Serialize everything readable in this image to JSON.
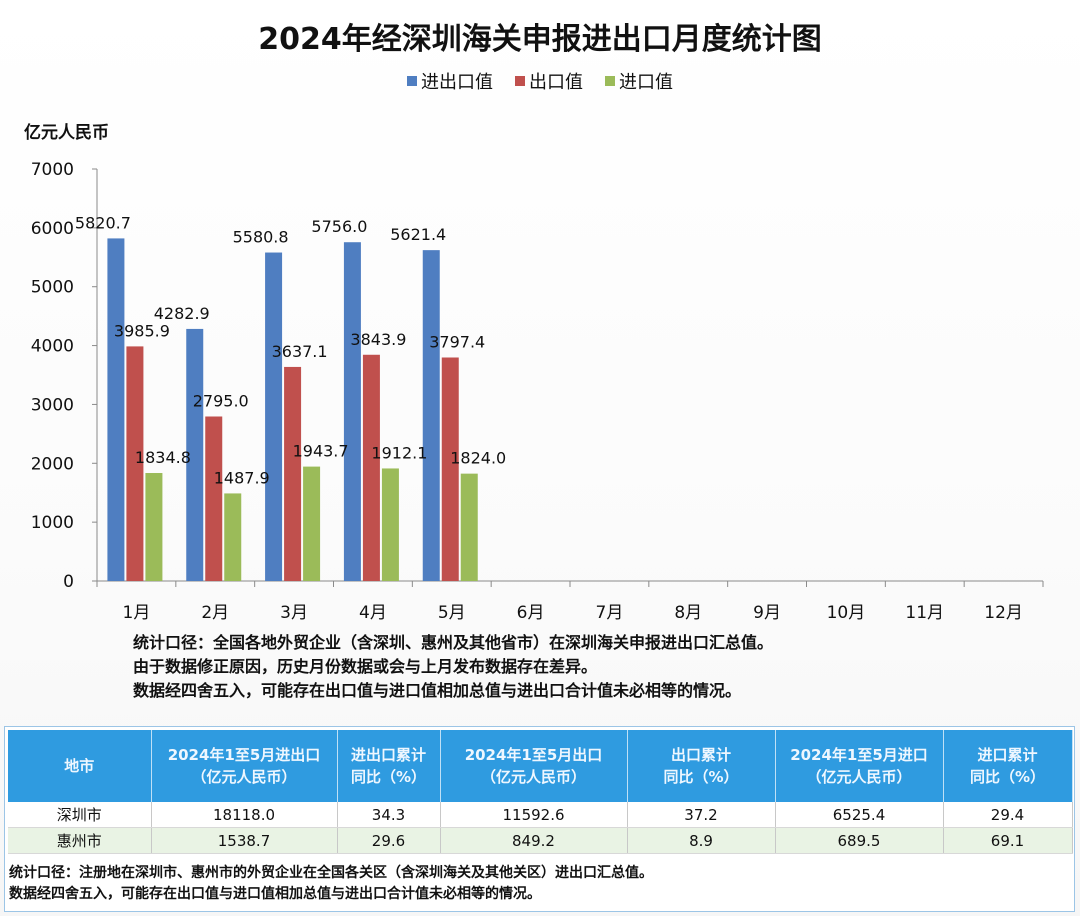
{
  "chart_data": {
    "type": "bar",
    "title": "2024年经深圳海关申报进出口月度统计图",
    "ylabel": "亿元人民币",
    "xlabel": "",
    "ylim": [
      0,
      7000
    ],
    "yticks": [
      "0",
      "1000",
      "2000",
      "3000",
      "4000",
      "5000",
      "6000",
      "7000"
    ],
    "categories": [
      "1月",
      "2月",
      "3月",
      "4月",
      "5月",
      "6月",
      "7月",
      "8月",
      "9月",
      "10月",
      "11月",
      "12月"
    ],
    "series": [
      {
        "name": "进出口值",
        "color": "#4f7ec1",
        "values": [
          5820.7,
          4282.9,
          5580.8,
          5756.0,
          5621.4,
          null,
          null,
          null,
          null,
          null,
          null,
          null
        ],
        "labels": [
          "5820.7",
          "4282.9",
          "5580.8",
          "5756.0",
          "5621.4"
        ]
      },
      {
        "name": "出口值",
        "color": "#c0504d",
        "values": [
          3985.9,
          2795.0,
          3637.1,
          3843.9,
          3797.4,
          null,
          null,
          null,
          null,
          null,
          null,
          null
        ],
        "labels": [
          "3985.9",
          "2795.0",
          "3637.1",
          "3843.9",
          "3797.4"
        ]
      },
      {
        "name": "进口值",
        "color": "#9bbb59",
        "values": [
          1834.8,
          1487.9,
          1943.7,
          1912.1,
          1824.0,
          null,
          null,
          null,
          null,
          null,
          null,
          null
        ],
        "labels": [
          "1834.8",
          "1487.9",
          "1943.7",
          "1912.1",
          "1824.0"
        ]
      }
    ],
    "grid": false,
    "legend": "top-center"
  },
  "notes": [
    "统计口径：全国各地外贸企业（含深圳、惠州及其他省市）在深圳海关申报进出口汇总值。",
    "由于数据修正原因，历史月份数据或会与上月发布数据存在差异。",
    "数据经四舍五入，可能存在出口值与进口值相加总值与进出口合计值未必相等的情况。"
  ],
  "table": {
    "headers": [
      {
        "line1": "地市",
        "line2": ""
      },
      {
        "line1": "2024年1至5月进出口",
        "line2": "（亿元人民币）"
      },
      {
        "line1": "进出口累计",
        "line2": "同比（%）"
      },
      {
        "line1": "2024年1至5月出口",
        "line2": "（亿元人民币）"
      },
      {
        "line1": "出口累计",
        "line2": "同比（%）"
      },
      {
        "line1": "2024年1至5月进口",
        "line2": "（亿元人民币）"
      },
      {
        "line1": "进口累计",
        "line2": "同比（%）"
      }
    ],
    "rows": [
      [
        "深圳市",
        "18118.0",
        "34.3",
        "11592.6",
        "37.2",
        "6525.4",
        "29.4"
      ],
      [
        "惠州市",
        "1538.7",
        "29.6",
        "849.2",
        "8.9",
        "689.5",
        "69.1"
      ]
    ],
    "notes": [
      "统计口径：注册地在深圳市、惠州市的外贸企业在全国各关区（含深圳海关及其他关区）进出口汇总值。",
      "数据经四舍五入，可能存在出口值与进口值相加总值与进出口合计值未必相等的情况。"
    ],
    "header_color": "#2f9be0"
  }
}
